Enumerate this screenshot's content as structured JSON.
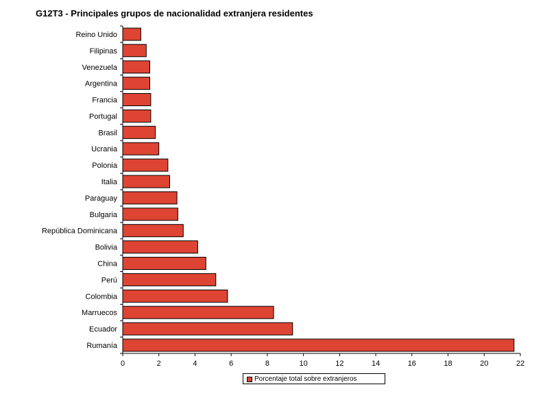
{
  "chart_data": {
    "type": "bar",
    "orientation": "horizontal",
    "title": "G12T3 - Principales grupos de nacionalidad extranjera residentes",
    "categories": [
      "Reino Unido",
      "Filipinas",
      "Venezuela",
      "Argentina",
      "Francia",
      "Portugal",
      "Brasil",
      "Ucrania",
      "Polonia",
      "Italia",
      "Paraguay",
      "Bulgaria",
      "República Dominicana",
      "Bolivia",
      "China",
      "Perú",
      "Colombia",
      "Marruecos",
      "Ecuador",
      "Rumanía"
    ],
    "series": [
      {
        "name": "Porcentaje total sobre extranjeros",
        "values": [
          1.0,
          1.3,
          1.5,
          1.5,
          1.55,
          1.55,
          1.8,
          2.0,
          2.5,
          2.6,
          3.0,
          3.05,
          3.35,
          4.15,
          4.6,
          5.15,
          5.8,
          8.35,
          9.4,
          21.65
        ]
      }
    ],
    "xlim": [
      0,
      22
    ],
    "xticks": [
      "0",
      "2",
      "4",
      "6",
      "8",
      "10",
      "12",
      "14",
      "16",
      "18",
      "20",
      "22"
    ],
    "grid": false,
    "legend_position": "bottom",
    "colors": {
      "bar": "#de4433",
      "bar_border": "#000000"
    }
  }
}
